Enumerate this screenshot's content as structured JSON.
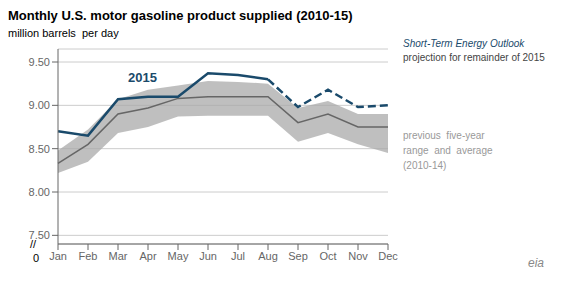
{
  "chart_data": {
    "type": "line",
    "title": "Monthly U.S. motor gasoline product supplied (2010-15)",
    "ylabel": "million barrels  per day",
    "categories": [
      "Jan",
      "Feb",
      "Mar",
      "Apr",
      "May",
      "Jun",
      "Jul",
      "Aug",
      "Sep",
      "Oct",
      "Nov",
      "Dec"
    ],
    "series": [
      {
        "type": "range",
        "color": "#aaaaaa",
        "lower": [
          8.22,
          8.35,
          8.68,
          8.75,
          8.87,
          8.88,
          8.88,
          8.88,
          8.58,
          8.68,
          8.55,
          8.45
        ],
        "upper": [
          8.48,
          8.72,
          9.07,
          9.18,
          9.23,
          9.28,
          9.27,
          9.25,
          8.97,
          9.05,
          8.9,
          8.9
        ]
      },
      {
        "type": "line",
        "color": "#666666",
        "line_style": "solid",
        "values": [
          8.33,
          8.55,
          8.9,
          8.97,
          9.08,
          9.1,
          9.1,
          9.1,
          8.8,
          8.9,
          8.75,
          8.75
        ]
      },
      {
        "type": "line",
        "color": "#1a4a6b",
        "line_style": "solid",
        "values": [
          8.7,
          8.65,
          9.07,
          9.1,
          9.1,
          9.37,
          9.35,
          9.3,
          null,
          null,
          null,
          null
        ]
      },
      {
        "type": "line",
        "color": "#1a4a6b",
        "line_style": "dashed",
        "values": [
          null,
          null,
          null,
          null,
          null,
          null,
          null,
          9.3,
          8.98,
          9.18,
          8.98,
          9.0
        ]
      }
    ],
    "ylim": [
      7.4,
      9.65
    ],
    "yticks": [
      {
        "value": 7.5,
        "label": "7.50"
      },
      {
        "value": 8.0,
        "label": "8.00"
      },
      {
        "value": 8.5,
        "label": "8.50"
      },
      {
        "value": 9.0,
        "label": "9.00"
      },
      {
        "value": 9.5,
        "label": "9.50"
      }
    ],
    "grid": true,
    "annotations": [
      {
        "text": "2015",
        "color": "#1a4a6b"
      },
      {
        "text": "Short-Term Energy Outlook",
        "color": "#1a4a6b"
      },
      {
        "text": "projection for remainder of 2015",
        "color": "#444444"
      },
      {
        "text": "previous  five-year\nrange  and  average\n(2010-14)",
        "color": "#999999"
      },
      {
        "text": "eia",
        "color": "#888888"
      },
      {
        "text": "//",
        "color": "#000000"
      },
      {
        "text": "0",
        "color": "#000000"
      }
    ]
  }
}
